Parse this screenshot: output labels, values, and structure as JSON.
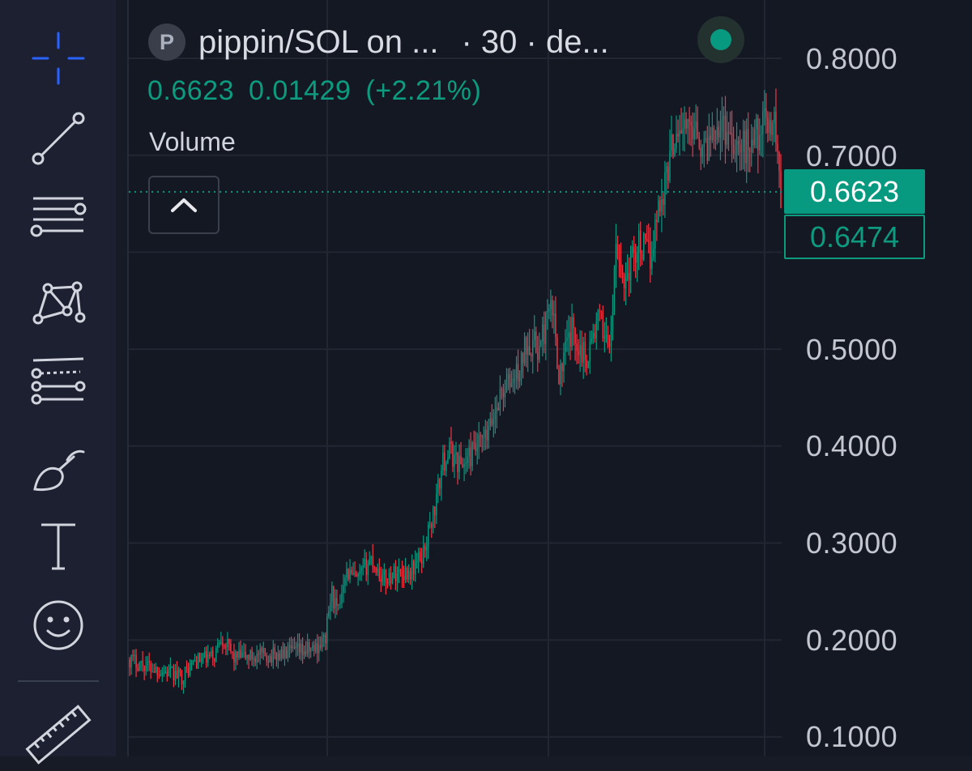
{
  "symbol": {
    "avatar_letter": "P",
    "title": "pippin/SOL on ...",
    "interval": "· 30 · de...",
    "status_color": "#089981"
  },
  "legend": {
    "last": "0.6623",
    "change": "0.01429",
    "change_pct": "(+2.21%)",
    "volume_label": "Volume"
  },
  "price_axis": {
    "labels": [
      "0.8000",
      "0.7000",
      "0.5000",
      "0.4000",
      "0.3000",
      "0.2000",
      "0.1000"
    ]
  },
  "price_tags": {
    "last_price": "0.6623",
    "open_price": "0.6474"
  },
  "toolbar": {
    "tools": [
      "crosshair-icon",
      "trend-line-icon",
      "horizontal-lines-icon",
      "pattern-icon",
      "forecast-icon",
      "brush-icon",
      "text-icon",
      "emoji-icon",
      "ruler-icon"
    ]
  },
  "colors": {
    "up": "#089981",
    "down": "#f23645",
    "accent": "#2962ff",
    "background": "#141823"
  },
  "chart_data": {
    "type": "candlestick",
    "y_axis": {
      "ticks": [
        0.8,
        0.7,
        0.5,
        0.4,
        0.3,
        0.2,
        0.1
      ],
      "range": [
        0.1,
        0.8
      ]
    },
    "series_path": [
      [
        0.0,
        0.18
      ],
      [
        0.04,
        0.17
      ],
      [
        0.08,
        0.162
      ],
      [
        0.1,
        0.178
      ],
      [
        0.13,
        0.183
      ],
      [
        0.14,
        0.205
      ],
      [
        0.16,
        0.182
      ],
      [
        0.22,
        0.184
      ],
      [
        0.28,
        0.19
      ],
      [
        0.3,
        0.2
      ],
      [
        0.31,
        0.25
      ],
      [
        0.32,
        0.225
      ],
      [
        0.33,
        0.272
      ],
      [
        0.35,
        0.26
      ],
      [
        0.37,
        0.285
      ],
      [
        0.39,
        0.262
      ],
      [
        0.41,
        0.27
      ],
      [
        0.43,
        0.27
      ],
      [
        0.45,
        0.288
      ],
      [
        0.47,
        0.34
      ],
      [
        0.48,
        0.38
      ],
      [
        0.49,
        0.395
      ],
      [
        0.51,
        0.38
      ],
      [
        0.53,
        0.395
      ],
      [
        0.55,
        0.41
      ],
      [
        0.57,
        0.455
      ],
      [
        0.59,
        0.47
      ],
      [
        0.6,
        0.48
      ],
      [
        0.61,
        0.51
      ],
      [
        0.63,
        0.5
      ],
      [
        0.64,
        0.53
      ],
      [
        0.65,
        0.54
      ],
      [
        0.66,
        0.47
      ],
      [
        0.67,
        0.5
      ],
      [
        0.68,
        0.52
      ],
      [
        0.7,
        0.49
      ],
      [
        0.72,
        0.53
      ],
      [
        0.74,
        0.505
      ],
      [
        0.745,
        0.6
      ],
      [
        0.76,
        0.57
      ],
      [
        0.78,
        0.61
      ],
      [
        0.8,
        0.595
      ],
      [
        0.81,
        0.64
      ],
      [
        0.82,
        0.665
      ],
      [
        0.83,
        0.7
      ],
      [
        0.84,
        0.73
      ],
      [
        0.86,
        0.725
      ],
      [
        0.87,
        0.74
      ],
      [
        0.88,
        0.7
      ],
      [
        0.9,
        0.735
      ],
      [
        0.92,
        0.725
      ],
      [
        0.94,
        0.705
      ],
      [
        0.96,
        0.72
      ],
      [
        0.98,
        0.735
      ],
      [
        0.99,
        0.735
      ],
      [
        1.0,
        0.662
      ]
    ],
    "last_price": 0.6623,
    "open_price": 0.6474
  }
}
